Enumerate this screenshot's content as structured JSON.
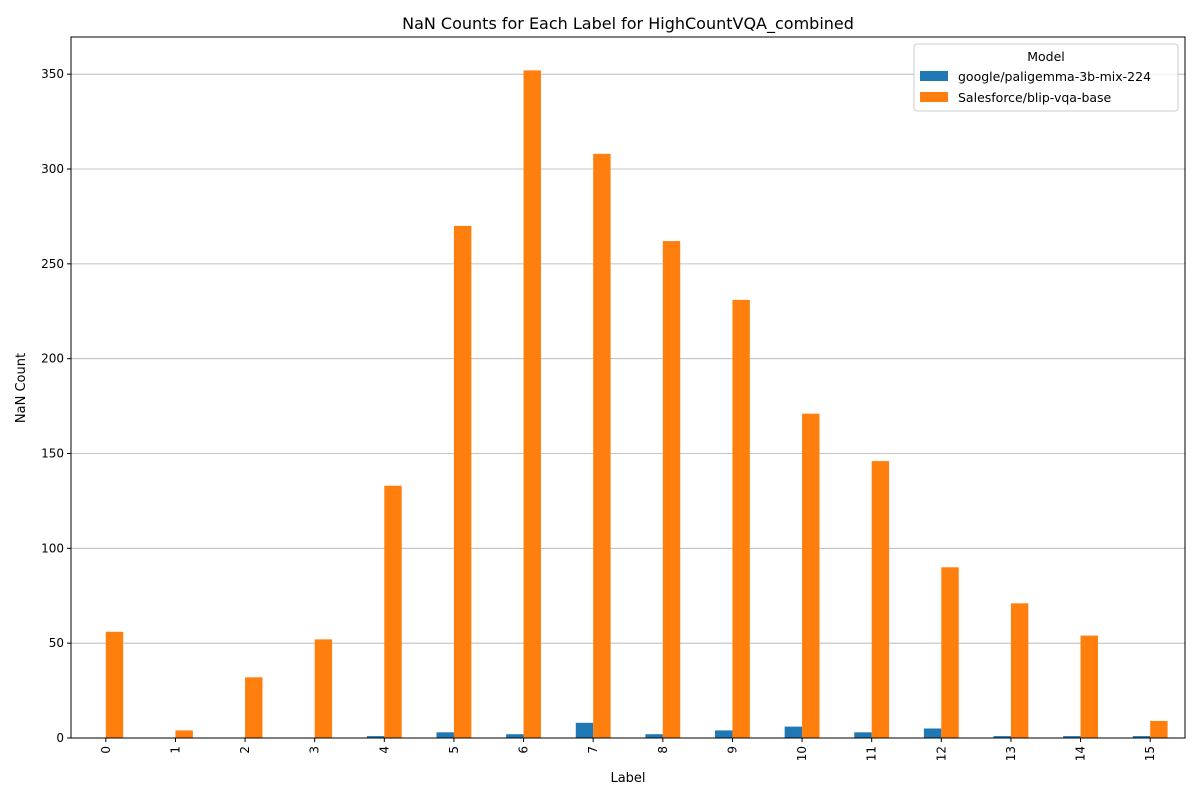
{
  "chart_data": {
    "type": "bar",
    "title": "NaN Counts for Each Label for HighCountVQA_combined",
    "xlabel": "Label",
    "ylabel": "NaN Count",
    "categories": [
      "0",
      "1",
      "2",
      "3",
      "4",
      "5",
      "6",
      "7",
      "8",
      "9",
      "10",
      "11",
      "12",
      "13",
      "14",
      "15"
    ],
    "series": [
      {
        "name": "google/paligemma-3b-mix-224",
        "color": "#1f77b4",
        "values": [
          0,
          0,
          0,
          0,
          1,
          3,
          2,
          8,
          2,
          4,
          6,
          3,
          5,
          1,
          1,
          1
        ]
      },
      {
        "name": "Salesforce/blip-vqa-base",
        "color": "#ff7f0e",
        "values": [
          56,
          4,
          32,
          52,
          133,
          270,
          352,
          308,
          262,
          231,
          171,
          146,
          90,
          71,
          54,
          9
        ]
      }
    ],
    "ylim": [
      0,
      369.6
    ],
    "yticks": [
      0,
      50,
      100,
      150,
      200,
      250,
      300,
      350
    ],
    "grid": "y",
    "legend": {
      "title": "Model",
      "position": "top-right"
    }
  }
}
